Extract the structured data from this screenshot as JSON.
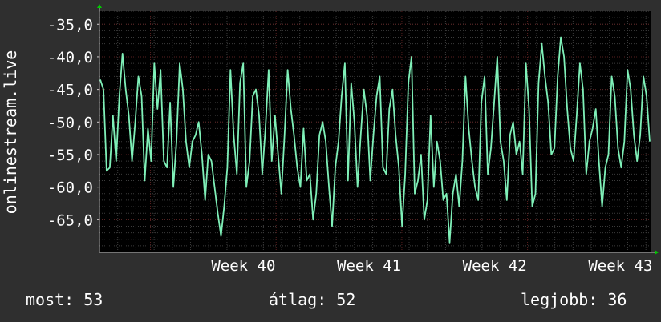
{
  "chart_data": {
    "type": "line",
    "ylabel": "onlinestream.live",
    "ylim": [
      -70,
      -33
    ],
    "y_ticks": [
      -35,
      -40,
      -45,
      -50,
      -55,
      -60,
      -65
    ],
    "y_tick_labels": [
      "-35,0",
      "-40,0",
      "-45,0",
      "-50,0",
      "-55,0",
      "-60,0",
      "-65,0"
    ],
    "x_labels": [
      {
        "label": "Week 40",
        "x": 7.9
      },
      {
        "label": "Week 41",
        "x": 14.8
      },
      {
        "label": "Week 42",
        "x": 21.7
      },
      {
        "label": "Week 43",
        "x": 28.6
      }
    ],
    "xlim": [
      0,
      30.3
    ],
    "grid": true,
    "colors": {
      "background": "#2f2f2f",
      "plot_area": "#000000",
      "line": "#7ff0b8",
      "grid": "#3c3c3c",
      "grid_major": "#5a2020",
      "axis_arrow": "#00cc00"
    },
    "series": [
      {
        "values": [
          -43.5,
          -45,
          -57.5,
          -57,
          -49,
          -56,
          -46,
          -39.5,
          -45,
          -49,
          -56,
          -50,
          -43,
          -46,
          -59,
          -51,
          -56,
          -41,
          -48,
          -42,
          -56,
          -57,
          -47,
          -60,
          -53,
          -41,
          -45,
          -53,
          -57,
          -53,
          -52,
          -50,
          -55,
          -62,
          -55,
          -56,
          -60,
          -64,
          -67.5,
          -63,
          -57,
          -42,
          -52,
          -58,
          -44,
          -41,
          -60,
          -56,
          -46,
          -45,
          -49,
          -58,
          -51,
          -42,
          -56,
          -49,
          -55,
          -61,
          -52,
          -42,
          -48,
          -52,
          -57,
          -60,
          -51,
          -59,
          -58,
          -65,
          -61,
          -52,
          -50,
          -53,
          -60,
          -66,
          -57,
          -53,
          -46,
          -41,
          -59,
          -44,
          -50,
          -60,
          -52,
          -45,
          -49,
          -59,
          -52,
          -46,
          -43,
          -57,
          -58,
          -48,
          -45,
          -52,
          -57,
          -66,
          -58,
          -44,
          -40,
          -61,
          -59,
          -55,
          -65,
          -62,
          -49,
          -60,
          -53,
          -56,
          -62,
          -61,
          -68.5,
          -61,
          -58,
          -63,
          -56,
          -43,
          -51,
          -56,
          -60,
          -62,
          -47,
          -43,
          -58,
          -54,
          -47,
          -40,
          -53,
          -56,
          -62,
          -52,
          -50,
          -55,
          -53,
          -58,
          -41,
          -48,
          -63,
          -61,
          -44,
          -38,
          -43,
          -47,
          -55,
          -54,
          -43,
          -37,
          -40,
          -48,
          -54,
          -56,
          -49,
          -41,
          -45,
          -58,
          -53,
          -51,
          -48,
          -56,
          -63,
          -57,
          -55,
          -43,
          -46,
          -54,
          -57,
          -53,
          -42,
          -45,
          -52,
          -56,
          -52,
          -43,
          -46,
          -53
        ]
      }
    ]
  },
  "stats": {
    "most": "most: 53",
    "atlag": "átlag: 52",
    "legjobb": "legjobb: 36"
  }
}
